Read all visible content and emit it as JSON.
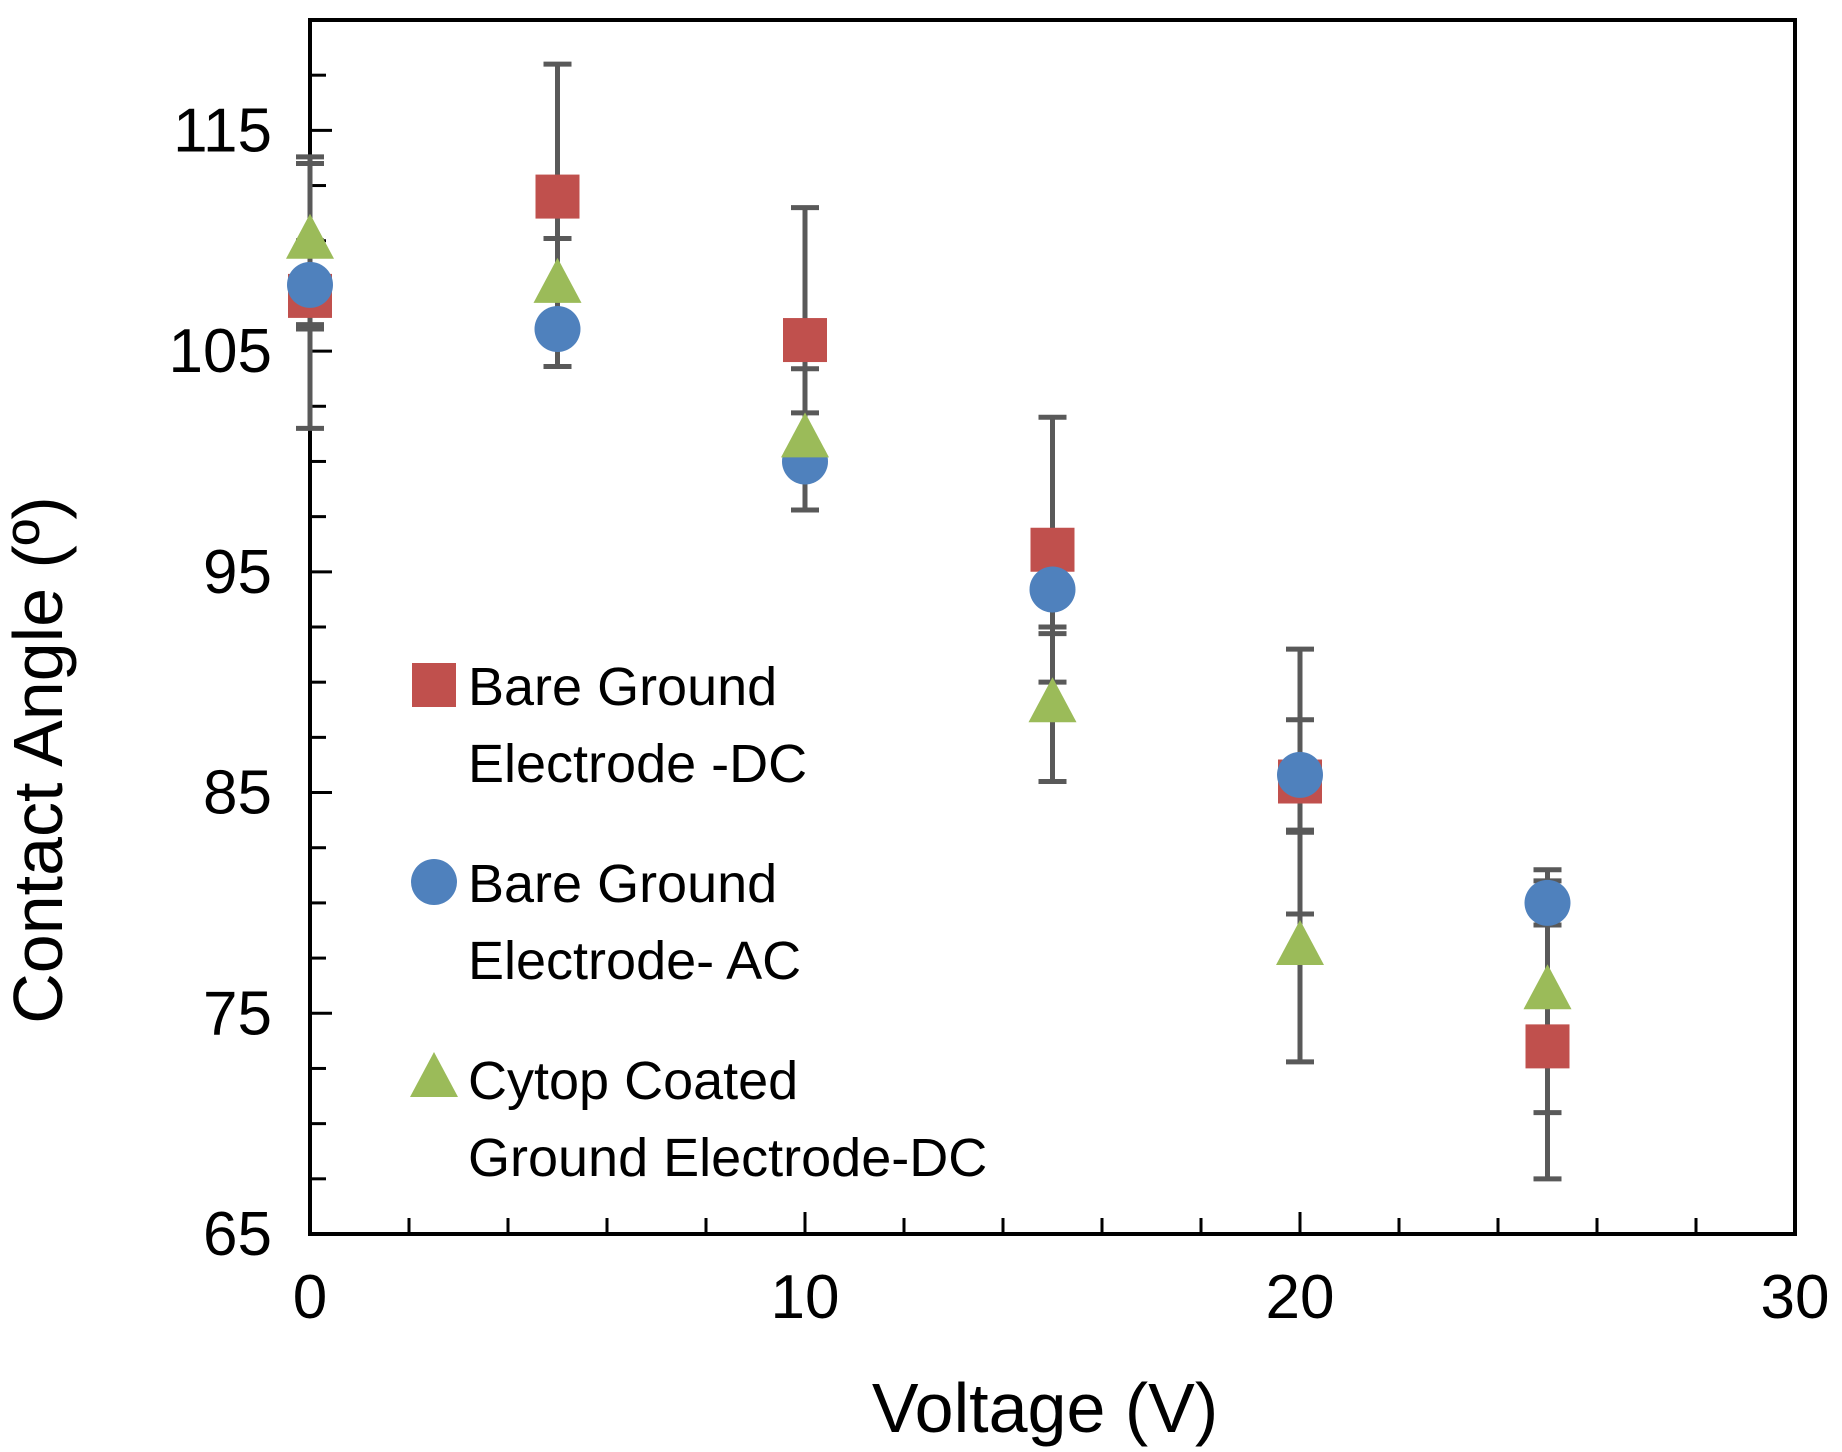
{
  "chart_data": {
    "type": "scatter",
    "xlabel": "Voltage (V)",
    "ylabel": "Contact Angle (º)",
    "xlim": [
      0,
      30
    ],
    "ylim": [
      65,
      120
    ],
    "x_ticks": [
      "0",
      "10",
      "20",
      "30"
    ],
    "y_ticks": [
      "65",
      "75",
      "85",
      "95",
      "105",
      "115"
    ],
    "grid": false,
    "legend_position": "center-left",
    "x": [
      0,
      5,
      10,
      15,
      20,
      25
    ],
    "series": [
      {
        "name": "Bare Ground Electrode -DC",
        "legend_lines": [
          "Bare Ground",
          "Electrode -DC"
        ],
        "marker": "square",
        "color": "#C0504D",
        "values": [
          107.5,
          112,
          105.5,
          96,
          85.5,
          73.5
        ],
        "errors": [
          6,
          6,
          6,
          6,
          6,
          6
        ]
      },
      {
        "name": "Bare Ground Electrode- AC",
        "legend_lines": [
          "Bare Ground",
          "Electrode- AC"
        ],
        "marker": "circle",
        "color": "#4F81BD",
        "values": [
          108,
          106,
          100,
          94.2,
          85.8,
          80
        ],
        "errors": [
          2,
          1.7,
          2.2,
          2,
          2.5,
          1
        ]
      },
      {
        "name": "Cytop Coated Ground Electrode-DC",
        "legend_lines": [
          "Cytop Coated",
          "Ground Electrode-DC"
        ],
        "marker": "triangle",
        "color": "#9BBB59",
        "values": [
          110,
          108,
          101,
          89,
          78,
          76
        ],
        "errors": [
          3.8,
          2.1,
          3.2,
          3.5,
          5.2,
          5.5
        ]
      }
    ],
    "errorbar_color": "#595959"
  }
}
